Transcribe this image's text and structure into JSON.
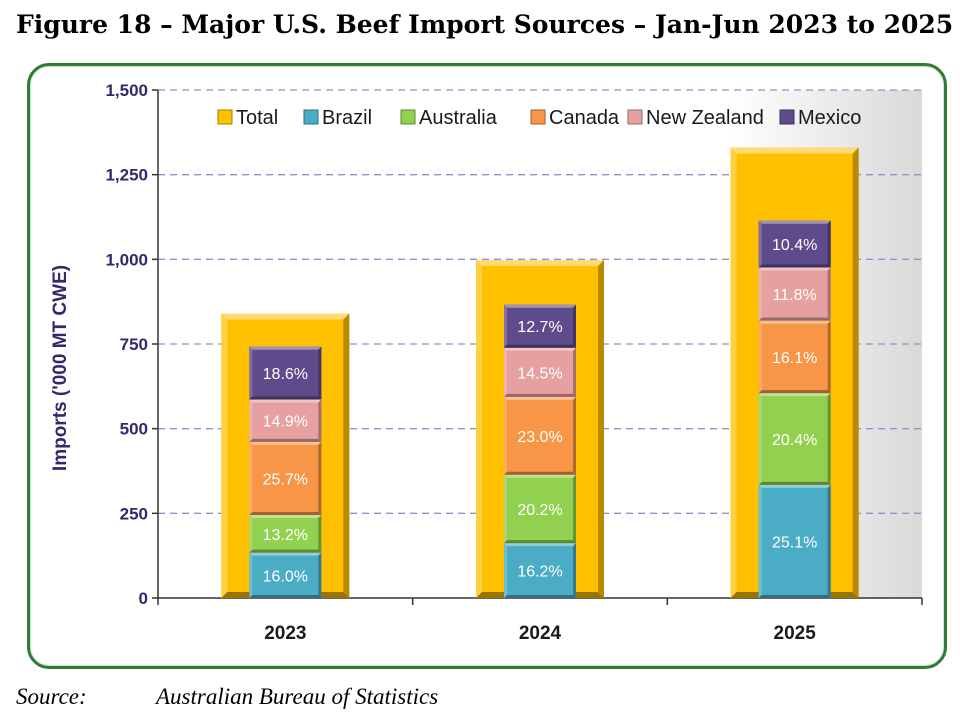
{
  "figure_title": "Figure 18 – Major U.S. Beef Import Sources – Jan-Jun 2023 to 2025",
  "source": {
    "label": "Source:",
    "text": "Australian Bureau of Statistics"
  },
  "chart_data": {
    "type": "bar",
    "title": "",
    "ylabel": "Imports ('000 MT CWE)",
    "xlabel": "",
    "ylim": [
      0,
      1500
    ],
    "yticks": [
      0,
      250,
      500,
      750,
      1000,
      1250,
      1500
    ],
    "ytick_labels": [
      "0",
      "250",
      "500",
      "750",
      "1,000",
      "1,250",
      "1,500"
    ],
    "grid": true,
    "legend_position": "top",
    "categories": [
      "2023",
      "2024",
      "2025"
    ],
    "total": {
      "name": "Total",
      "values": [
        840,
        998,
        1330
      ],
      "color": "#FFC000"
    },
    "series": [
      {
        "name": "Brazil",
        "color": "#4BACC6",
        "values": [
          134,
          162,
          334
        ],
        "labels": [
          "16.0%",
          "16.2%",
          "25.1%"
        ]
      },
      {
        "name": "Australia",
        "color": "#92D050",
        "values": [
          111,
          202,
          271
        ],
        "labels": [
          "13.2%",
          "20.2%",
          "20.4%"
        ]
      },
      {
        "name": "Canada",
        "color": "#F79646",
        "values": [
          216,
          230,
          214
        ],
        "labels": [
          "25.7%",
          "23.0%",
          "16.1%"
        ]
      },
      {
        "name": "New Zealand",
        "color": "#E6A0A0",
        "values": [
          125,
          145,
          157
        ],
        "labels": [
          "14.9%",
          "14.5%",
          "11.8%"
        ]
      },
      {
        "name": "Mexico",
        "color": "#5F4B8B",
        "values": [
          156,
          127,
          138
        ],
        "labels": [
          "18.6%",
          "12.7%",
          "10.4%"
        ]
      }
    ]
  }
}
